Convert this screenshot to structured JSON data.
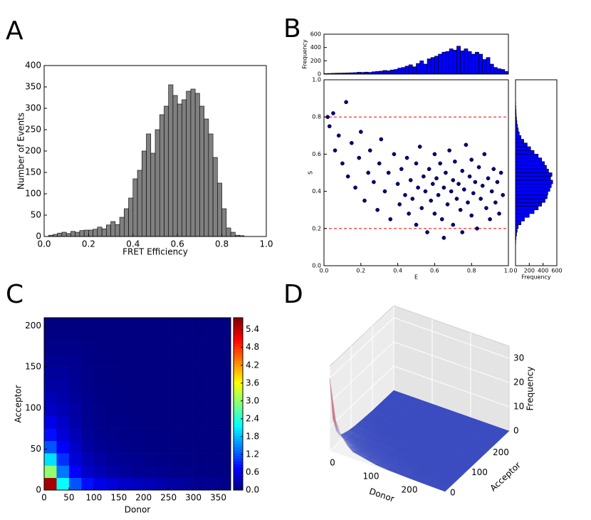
{
  "chart_data": [
    {
      "type": "histogram",
      "panel": "A",
      "xlabel": "FRET Efficiency",
      "ylabel": "Number of Events",
      "color": "#808080",
      "bins": [
        0.02,
        0.04,
        0.06,
        0.08,
        0.1,
        0.12,
        0.14,
        0.16,
        0.18,
        0.2,
        0.22,
        0.24,
        0.26,
        0.28,
        0.3,
        0.32,
        0.34,
        0.36,
        0.38,
        0.4,
        0.42,
        0.44,
        0.46,
        0.48,
        0.5,
        0.52,
        0.54,
        0.56,
        0.58,
        0.6,
        0.62,
        0.64,
        0.66,
        0.68,
        0.7,
        0.72,
        0.74,
        0.76,
        0.78,
        0.8,
        0.82,
        0.84,
        0.86,
        0.88,
        0.9
      ],
      "values": [
        3,
        5,
        8,
        10,
        7,
        12,
        10,
        14,
        15,
        15,
        17,
        22,
        18,
        27,
        35,
        28,
        45,
        65,
        90,
        135,
        155,
        200,
        240,
        195,
        250,
        285,
        305,
        355,
        330,
        310,
        320,
        340,
        345,
        335,
        305,
        275,
        240,
        185,
        125,
        65,
        20,
        10,
        3,
        2
      ],
      "xlim": [
        0,
        1
      ],
      "xticks": [
        {
          "value": 0,
          "label": "0.0"
        },
        0.2,
        0.4,
        0.6,
        0.8,
        {
          "value": 1,
          "label": "1.0"
        }
      ],
      "ylim": [
        0,
        400
      ],
      "yticks": [
        0,
        50,
        100,
        150,
        200,
        250,
        300,
        350,
        400
      ]
    },
    {
      "type": "histogram",
      "panel": "B",
      "ylabel": "Frequency",
      "color": "#0000ff",
      "bins": [
        0,
        0.02,
        0.04,
        0.06,
        0.08,
        0.1,
        0.12,
        0.14,
        0.16,
        0.18,
        0.2,
        0.22,
        0.24,
        0.26,
        0.28,
        0.3,
        0.32,
        0.34,
        0.36,
        0.38,
        0.4,
        0.42,
        0.44,
        0.46,
        0.48,
        0.5,
        0.52,
        0.54,
        0.56,
        0.58,
        0.6,
        0.62,
        0.64,
        0.66,
        0.68,
        0.7,
        0.72,
        0.74,
        0.76,
        0.78,
        0.8,
        0.82,
        0.84,
        0.86,
        0.88,
        0.9,
        0.92,
        0.94,
        0.96,
        0.98,
        1
      ],
      "values": [
        8,
        10,
        12,
        14,
        15,
        16,
        18,
        20,
        22,
        28,
        25,
        30,
        26,
        35,
        40,
        45,
        55,
        50,
        62,
        70,
        90,
        100,
        120,
        140,
        110,
        160,
        200,
        150,
        230,
        250,
        270,
        300,
        330,
        340,
        380,
        360,
        420,
        350,
        380,
        340,
        300,
        330,
        300,
        220,
        250,
        150,
        100,
        80,
        70,
        40
      ],
      "xlim": [
        0,
        1
      ],
      "ylim": [
        0,
        600
      ],
      "yticks": [
        0,
        200,
        400,
        600
      ]
    },
    {
      "type": "scatter",
      "xlabel": "E",
      "ylabel": "S",
      "color": "#000080",
      "hlines": [
        0.2,
        0.8
      ],
      "hline_color": "#ff0000",
      "x": [
        0.02,
        0.03,
        0.05,
        0.06,
        0.08,
        0.1,
        0.12,
        0.13,
        0.15,
        0.17,
        0.19,
        0.2,
        0.22,
        0.24,
        0.25,
        0.27,
        0.29,
        0.3,
        0.31,
        0.33,
        0.35,
        0.36,
        0.38,
        0.4,
        0.41,
        0.42,
        0.44,
        0.45,
        0.46,
        0.47,
        0.48,
        0.5,
        0.5,
        0.51,
        0.52,
        0.53,
        0.54,
        0.55,
        0.56,
        0.57,
        0.58,
        0.59,
        0.6,
        0.6,
        0.61,
        0.62,
        0.63,
        0.64,
        0.65,
        0.65,
        0.66,
        0.67,
        0.68,
        0.69,
        0.7,
        0.7,
        0.71,
        0.72,
        0.73,
        0.74,
        0.75,
        0.75,
        0.76,
        0.77,
        0.78,
        0.79,
        0.8,
        0.8,
        0.81,
        0.82,
        0.83,
        0.84,
        0.85,
        0.86,
        0.87,
        0.88,
        0.89,
        0.9,
        0.91,
        0.92,
        0.93,
        0.94,
        0.95,
        0.96,
        0.97
      ],
      "values": [
        0.8,
        0.75,
        0.82,
        0.62,
        0.7,
        0.55,
        0.88,
        0.48,
        0.66,
        0.42,
        0.58,
        0.72,
        0.35,
        0.5,
        0.62,
        0.45,
        0.3,
        0.55,
        0.68,
        0.4,
        0.5,
        0.25,
        0.6,
        0.44,
        0.33,
        0.52,
        0.38,
        0.58,
        0.28,
        0.46,
        0.36,
        0.55,
        0.22,
        0.42,
        0.64,
        0.31,
        0.48,
        0.4,
        0.18,
        0.52,
        0.35,
        0.44,
        0.6,
        0.28,
        0.47,
        0.38,
        0.55,
        0.25,
        0.42,
        0.15,
        0.5,
        0.33,
        0.62,
        0.4,
        0.46,
        0.22,
        0.56,
        0.36,
        0.44,
        0.3,
        0.51,
        0.18,
        0.41,
        0.65,
        0.34,
        0.48,
        0.27,
        0.57,
        0.39,
        0.45,
        0.2,
        0.53,
        0.36,
        0.43,
        0.6,
        0.31,
        0.47,
        0.25,
        0.4,
        0.52,
        0.34,
        0.45,
        0.28,
        0.5,
        0.38
      ],
      "xlim": [
        0,
        1
      ],
      "xticks": [
        {
          "value": 0,
          "label": "0.0"
        },
        0.2,
        0.4,
        0.6,
        0.8,
        {
          "value": 1,
          "label": "1.0"
        }
      ],
      "ylim": [
        0,
        1
      ],
      "yticks": [
        {
          "value": 0,
          "label": "0.0"
        },
        0.2,
        0.4,
        0.6,
        0.8,
        {
          "value": 1,
          "label": "1.0"
        }
      ]
    },
    {
      "type": "histogram",
      "orientation": "horizontal",
      "xlabel": "Frequency",
      "color": "#0000ff",
      "bins": [
        0.1,
        0.12,
        0.14,
        0.16,
        0.18,
        0.2,
        0.22,
        0.24,
        0.26,
        0.28,
        0.3,
        0.32,
        0.34,
        0.36,
        0.38,
        0.4,
        0.42,
        0.44,
        0.46,
        0.48,
        0.5,
        0.52,
        0.54,
        0.56,
        0.58,
        0.6,
        0.62,
        0.64,
        0.66,
        0.68,
        0.7,
        0.72,
        0.74,
        0.76,
        0.78,
        0.8,
        0.82,
        0.84,
        0.86,
        0.88,
        0.9
      ],
      "values": [
        2,
        4,
        8,
        15,
        25,
        40,
        80,
        130,
        200,
        270,
        330,
        380,
        430,
        460,
        470,
        500,
        520,
        540,
        510,
        530,
        480,
        450,
        420,
        380,
        330,
        270,
        220,
        170,
        120,
        80,
        55,
        40,
        30,
        20,
        15,
        10,
        8,
        5,
        3,
        2
      ],
      "xlim": [
        0,
        600
      ],
      "xticks": [
        0,
        200,
        400,
        600
      ],
      "ylim": [
        0,
        1
      ]
    },
    {
      "type": "heatmap",
      "panel": "C",
      "xlabel": "Donor",
      "ylabel": "Acceptor",
      "colormap": "jet",
      "xbins": [
        0,
        25,
        50,
        75,
        100,
        125,
        150,
        175,
        200,
        225,
        250,
        275,
        300,
        325,
        350,
        375
      ],
      "ybins": [
        0,
        15,
        30,
        45,
        60,
        75,
        90,
        105,
        120,
        135,
        150,
        165,
        180,
        195,
        210
      ],
      "values": [
        [
          5.6,
          2.2,
          1.2,
          0.8,
          0.6,
          0.5,
          0.4,
          0.35,
          0.3,
          0.25,
          0.2,
          0.15,
          0.1,
          0.1,
          0.05
        ],
        [
          3.0,
          1.4,
          0.7,
          0.4,
          0.3,
          0.2,
          0.15,
          0.1,
          0.1,
          0.08,
          0.05,
          0.05,
          0.03,
          0.02,
          0.02
        ],
        [
          2.0,
          1.0,
          0.5,
          0.3,
          0.2,
          0.12,
          0.1,
          0.08,
          0.05,
          0.04,
          0.03,
          0.02,
          0.02,
          0.01,
          0.01
        ],
        [
          1.2,
          0.7,
          0.4,
          0.2,
          0.12,
          0.08,
          0.05,
          0.04,
          0.03,
          0.02,
          0.02,
          0.01,
          0.01,
          0,
          0
        ],
        [
          0.8,
          0.5,
          0.3,
          0.15,
          0.08,
          0.05,
          0.04,
          0.03,
          0.02,
          0.01,
          0.01,
          0,
          0,
          0,
          0
        ],
        [
          0.6,
          0.4,
          0.25,
          0.1,
          0.06,
          0.04,
          0.03,
          0.02,
          0.01,
          0,
          0,
          0,
          0,
          0,
          0
        ],
        [
          0.4,
          0.3,
          0.2,
          0.1,
          0.05,
          0.03,
          0.02,
          0.01,
          0,
          0,
          0,
          0,
          0,
          0,
          0
        ],
        [
          0.3,
          0.25,
          0.15,
          0.08,
          0.04,
          0.02,
          0.01,
          0,
          0,
          0,
          0,
          0,
          0,
          0,
          0
        ],
        [
          0.2,
          0.2,
          0.12,
          0.06,
          0.03,
          0.02,
          0.01,
          0,
          0,
          0,
          0,
          0,
          0,
          0,
          0
        ],
        [
          0.15,
          0.15,
          0.1,
          0.05,
          0.02,
          0.01,
          0,
          0,
          0,
          0,
          0,
          0,
          0,
          0,
          0
        ],
        [
          0.1,
          0.1,
          0.08,
          0.04,
          0.02,
          0.01,
          0,
          0,
          0,
          0,
          0,
          0,
          0,
          0,
          0
        ],
        [
          0.05,
          0.06,
          0.05,
          0.03,
          0.01,
          0,
          0,
          0,
          0,
          0,
          0,
          0,
          0,
          0,
          0
        ],
        [
          0.02,
          0.03,
          0.02,
          0.01,
          0,
          0,
          0,
          0,
          0,
          0,
          0,
          0,
          0,
          0,
          0
        ],
        [
          0,
          0.01,
          0.01,
          0,
          0,
          0,
          0,
          0,
          0,
          0,
          0,
          0,
          0,
          0,
          0
        ]
      ],
      "xlim": [
        0,
        375
      ],
      "xticks": [
        0,
        50,
        100,
        150,
        200,
        250,
        300,
        350
      ],
      "ylim": [
        0,
        210
      ],
      "yticks": [
        0,
        50,
        100,
        150,
        200
      ],
      "clim": [
        0,
        5.8
      ],
      "cticks": [
        {
          "value": 0,
          "label": "0.0"
        },
        0.6,
        1.2,
        1.8,
        2.4,
        {
          "value": 3,
          "label": "3.0"
        },
        3.6,
        4.2,
        4.8,
        5.4
      ]
    },
    {
      "type": "surface3d",
      "panel": "D",
      "xlabel": "Donor",
      "ylabel": "Acceptor",
      "zlabel": "Frequency",
      "colormap": "coolwarm",
      "x": [
        0,
        15,
        30,
        45,
        60,
        90,
        120,
        150,
        200,
        250,
        300
      ],
      "y": [
        0,
        15,
        30,
        45,
        60,
        90,
        120,
        150,
        200,
        250,
        300
      ],
      "z": [
        [
          30,
          12,
          6,
          3,
          2,
          1,
          0.5,
          0.3,
          0,
          0,
          0
        ],
        [
          14,
          7,
          4,
          2,
          1.5,
          0.8,
          0.4,
          0.2,
          0,
          0,
          0
        ],
        [
          8,
          5,
          3,
          1.5,
          1,
          0.6,
          0.3,
          0.1,
          0,
          0,
          0
        ],
        [
          5,
          3,
          2,
          1,
          0.6,
          0.4,
          0.2,
          0,
          0,
          0,
          0
        ],
        [
          3,
          2,
          1.2,
          0.8,
          0.5,
          0.3,
          0.1,
          0,
          0,
          0,
          0
        ],
        [
          2,
          1.2,
          0.8,
          0.5,
          0.3,
          0.2,
          0,
          0,
          0,
          0,
          0
        ],
        [
          1,
          0.8,
          0.5,
          0.3,
          0.2,
          0.1,
          0,
          0,
          0,
          0,
          0
        ],
        [
          0.6,
          0.5,
          0.3,
          0.2,
          0.1,
          0,
          0,
          0,
          0,
          0,
          0
        ],
        [
          0.3,
          0.2,
          0.1,
          0,
          0,
          0,
          0,
          0,
          0,
          0,
          0
        ],
        [
          0.1,
          0.1,
          0,
          0,
          0,
          0,
          0,
          0,
          0,
          0,
          0
        ],
        [
          0,
          0,
          0,
          0,
          0,
          0,
          0,
          0,
          0,
          0,
          0
        ]
      ],
      "xlim": [
        0,
        300
      ],
      "xticks": [
        0,
        100,
        200
      ],
      "ylim": [
        0,
        300
      ],
      "yticks": [
        0,
        100,
        200
      ],
      "zlim": [
        0,
        35
      ],
      "zticks": [
        0,
        10,
        20,
        30
      ]
    }
  ]
}
